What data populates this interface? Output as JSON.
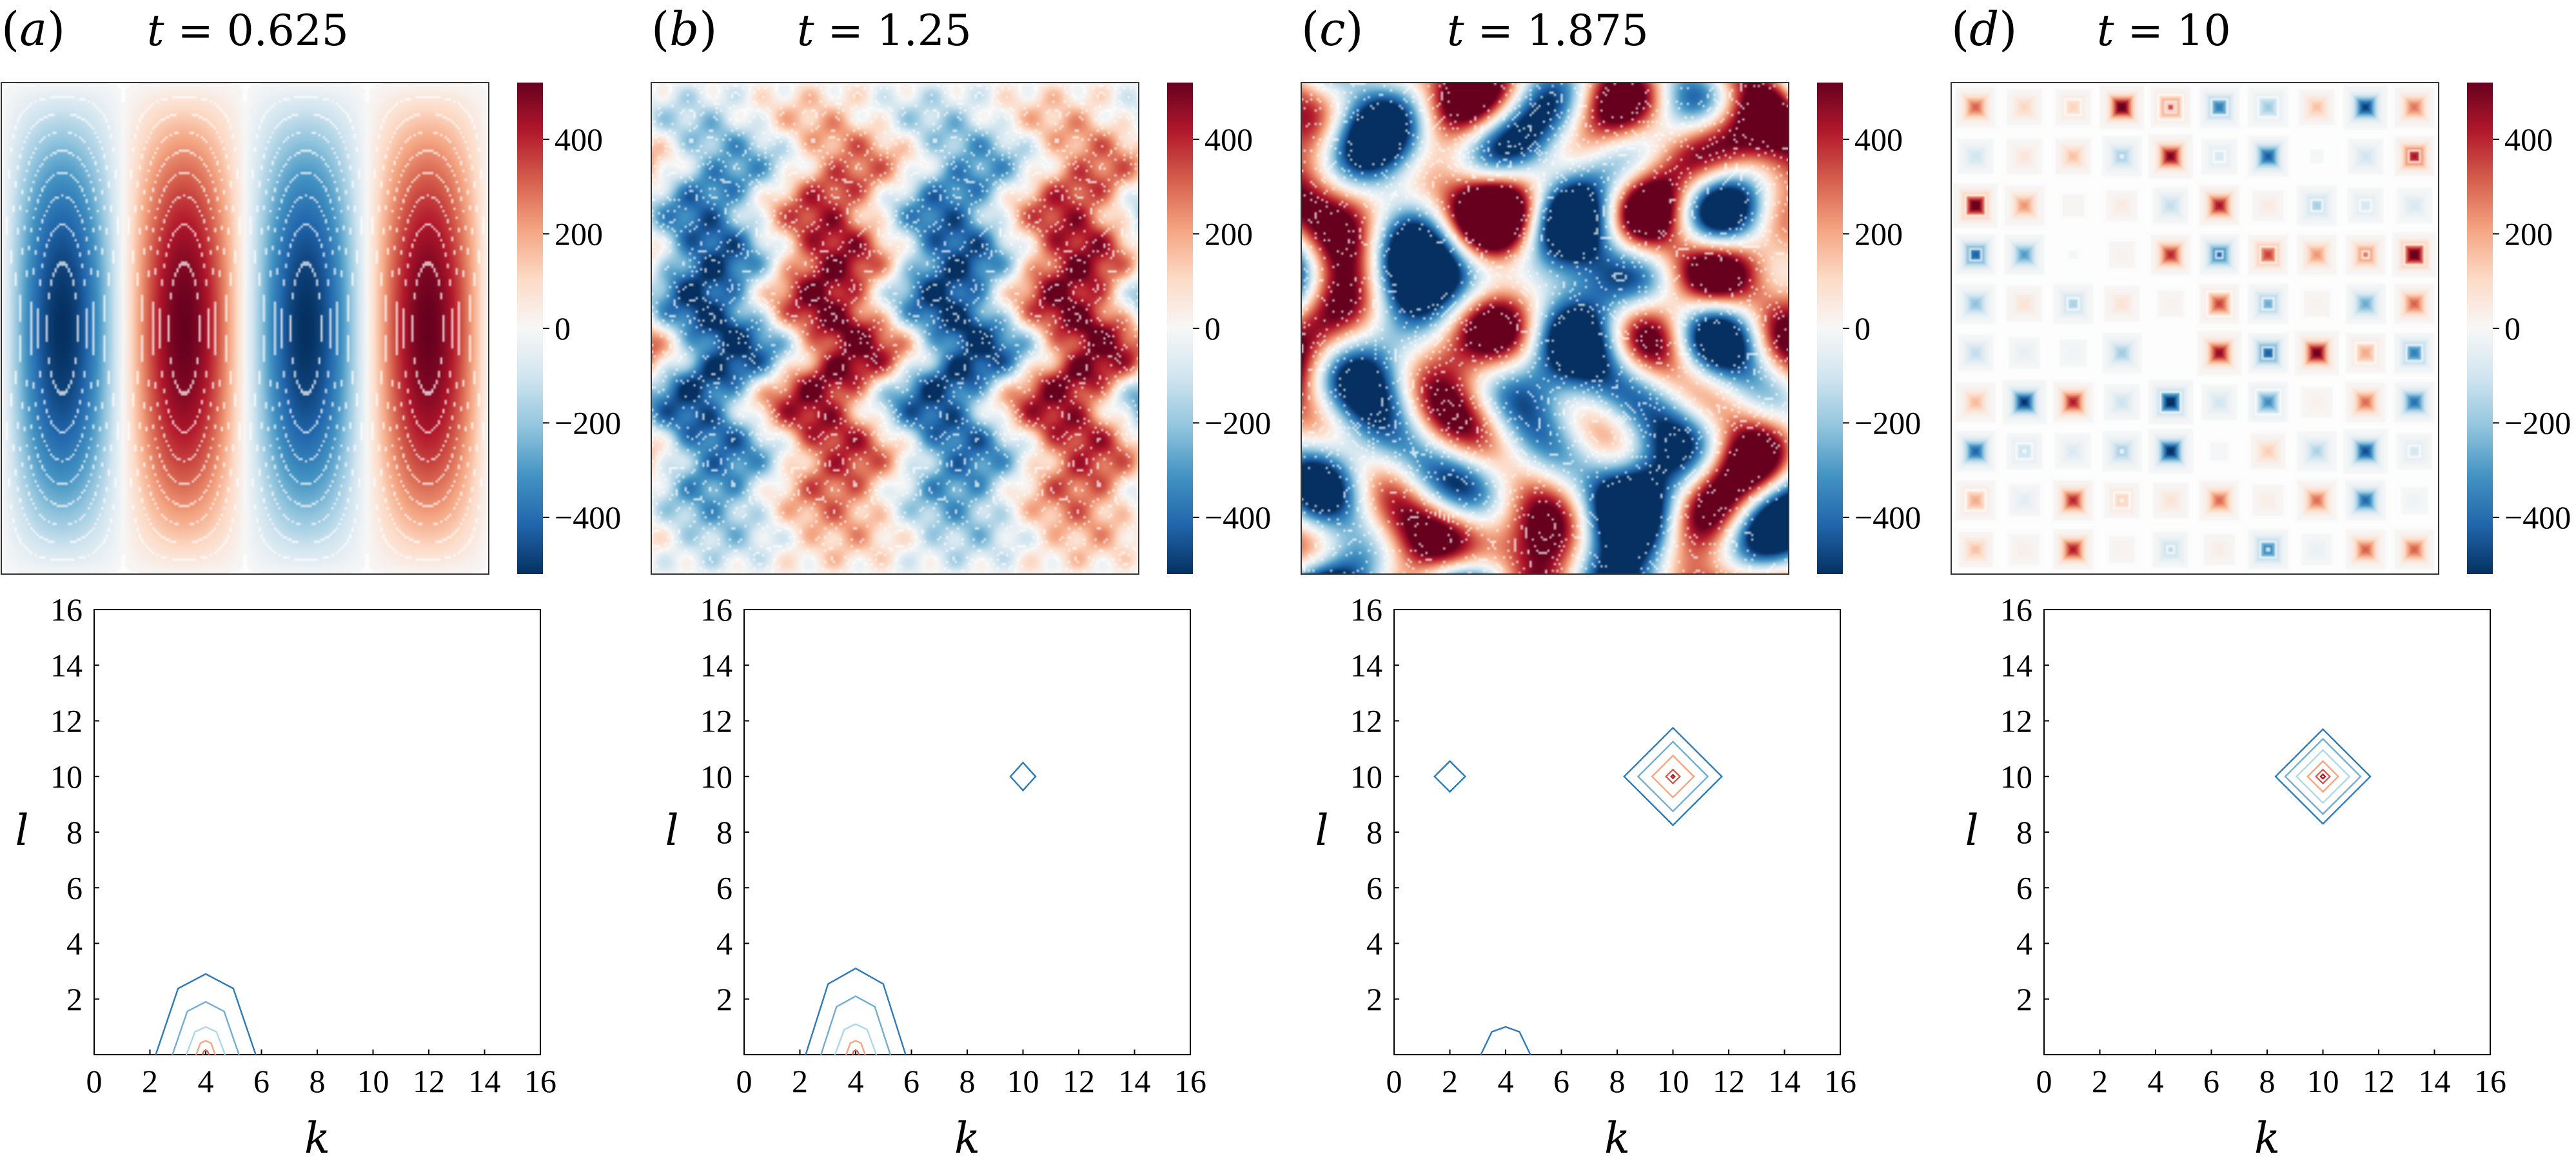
{
  "panels": [
    {
      "letter": "a",
      "label_open": "(",
      "label_letter": "a",
      "label_close": ")",
      "time_label": "t = 0.625",
      "t_symbol": "t",
      "t_eq": "= 0.625"
    },
    {
      "letter": "b",
      "label_open": "(",
      "label_letter": "b",
      "label_close": ")",
      "time_label": "t = 1.25",
      "t_symbol": "t",
      "t_eq": "= 1.25"
    },
    {
      "letter": "c",
      "label_open": "(",
      "label_letter": "c",
      "label_close": ")",
      "time_label": "t = 1.875",
      "t_symbol": "t",
      "t_eq": "= 1.875"
    },
    {
      "letter": "d",
      "label_open": "(",
      "label_letter": "d",
      "label_close": ")",
      "time_label": "t = 10",
      "t_symbol": "t",
      "t_eq": "= 10"
    }
  ],
  "colorbar": {
    "ticks": [
      "400",
      "200",
      "0",
      "−200",
      "−400"
    ],
    "tick_values": [
      400,
      200,
      0,
      -200,
      -400
    ],
    "range": [
      -520,
      520
    ],
    "colors": [
      "#053061",
      "#2166ac",
      "#4393c3",
      "#92c5de",
      "#d1e5f0",
      "#f7f7f7",
      "#fddbc7",
      "#f4a582",
      "#d6604d",
      "#b2182b",
      "#67001f"
    ]
  },
  "chart_data": [
    {
      "type": "heatmap",
      "panel": "a",
      "description_values": "vorticity field, four vertical bands",
      "field": {
        "kind": "bands",
        "kx": 4,
        "ly": 0.5,
        "amp": 520,
        "pattern": "-+-+"
      },
      "colorbar_ticks": [
        400,
        200,
        0,
        -200,
        -400
      ]
    },
    {
      "type": "heatmap",
      "panel": "b",
      "field": {
        "kind": "bands_perturbed",
        "kx": 4,
        "amp": 520
      },
      "colorbar_ticks": [
        400,
        200,
        0,
        -200,
        -400
      ]
    },
    {
      "type": "heatmap",
      "panel": "c",
      "field": {
        "kind": "turbulent",
        "amp": 560
      },
      "colorbar_ticks": [
        400,
        200,
        0,
        -200,
        -400
      ]
    },
    {
      "type": "heatmap",
      "panel": "d",
      "field": {
        "kind": "cellular",
        "k": 10,
        "l": 10,
        "amp": 560
      },
      "colorbar_ticks": [
        400,
        200,
        0,
        -200,
        -400
      ]
    },
    {
      "type": "line",
      "panel": "a-spectrum",
      "xlabel": "k",
      "ylabel": "l",
      "xlim": [
        0,
        16
      ],
      "ylim": [
        0,
        16
      ],
      "xticks": [
        0,
        2,
        4,
        6,
        8,
        10,
        12,
        14,
        16
      ],
      "yticks": [
        2,
        4,
        6,
        8,
        10,
        12,
        14,
        16
      ],
      "contours": [
        {
          "center": [
            4,
            0
          ],
          "half_width": 1.8,
          "half_height": 2.9,
          "color": "#2c7bb6",
          "clipped": true
        },
        {
          "center": [
            4,
            0
          ],
          "half_width": 1.2,
          "half_height": 1.9,
          "color": "#74add1",
          "clipped": true
        },
        {
          "center": [
            4,
            0
          ],
          "half_width": 0.7,
          "half_height": 1.0,
          "color": "#abd9e9",
          "clipped": true
        },
        {
          "center": [
            4,
            0
          ],
          "half_width": 0.35,
          "half_height": 0.5,
          "color": "#f4a582",
          "clipped": true
        },
        {
          "center": [
            4,
            0
          ],
          "half_width": 0.12,
          "half_height": 0.15,
          "color": "#d6604d",
          "clipped": true
        }
      ]
    },
    {
      "type": "line",
      "panel": "b-spectrum",
      "xlabel": "k",
      "ylabel": "l",
      "xlim": [
        0,
        16
      ],
      "ylim": [
        0,
        16
      ],
      "xticks": [
        0,
        2,
        4,
        6,
        8,
        10,
        12,
        14,
        16
      ],
      "yticks": [
        2,
        4,
        6,
        8,
        10,
        12,
        14,
        16
      ],
      "contours": [
        {
          "center": [
            4,
            0
          ],
          "half_width": 1.8,
          "half_height": 3.1,
          "color": "#2c7bb6",
          "clipped": true
        },
        {
          "center": [
            4,
            0
          ],
          "half_width": 1.25,
          "half_height": 2.1,
          "color": "#74add1",
          "clipped": true
        },
        {
          "center": [
            4,
            0
          ],
          "half_width": 0.75,
          "half_height": 1.1,
          "color": "#abd9e9",
          "clipped": true
        },
        {
          "center": [
            4,
            0
          ],
          "half_width": 0.35,
          "half_height": 0.5,
          "color": "#f4a582",
          "clipped": true
        },
        {
          "center": [
            4,
            0
          ],
          "half_width": 0.12,
          "half_height": 0.15,
          "color": "#d6604d",
          "clipped": true
        },
        {
          "center": [
            10,
            10
          ],
          "half_width": 0.45,
          "half_height": 0.5,
          "color": "#2c7bb6",
          "clipped": false
        }
      ]
    },
    {
      "type": "line",
      "panel": "c-spectrum",
      "xlabel": "k",
      "ylabel": "l",
      "xlim": [
        0,
        16
      ],
      "ylim": [
        0,
        16
      ],
      "xticks": [
        0,
        2,
        4,
        6,
        8,
        10,
        12,
        14,
        16
      ],
      "yticks": [
        2,
        4,
        6,
        8,
        10,
        12,
        14,
        16
      ],
      "contours": [
        {
          "center": [
            2,
            10
          ],
          "half_width": 0.55,
          "half_height": 0.55,
          "color": "#2c7bb6",
          "clipped": false
        },
        {
          "center": [
            4,
            0
          ],
          "half_width": 0.9,
          "half_height": 1.0,
          "color": "#2c7bb6",
          "clipped": true
        },
        {
          "center": [
            10,
            10
          ],
          "half_width": 1.75,
          "half_height": 1.75,
          "color": "#2c7bb6",
          "clipped": false
        },
        {
          "center": [
            10,
            10
          ],
          "half_width": 1.25,
          "half_height": 1.25,
          "color": "#74add1",
          "clipped": false
        },
        {
          "center": [
            10,
            10
          ],
          "half_width": 0.75,
          "half_height": 0.75,
          "color": "#f4a582",
          "clipped": false
        },
        {
          "center": [
            10,
            10
          ],
          "half_width": 0.25,
          "half_height": 0.25,
          "color": "#d6604d",
          "clipped": false
        },
        {
          "center": [
            10,
            10
          ],
          "half_width": 0.06,
          "half_height": 0.06,
          "color": "#b2182b",
          "clipped": false
        }
      ]
    },
    {
      "type": "line",
      "panel": "d-spectrum",
      "xlabel": "k",
      "ylabel": "l",
      "xlim": [
        0,
        16
      ],
      "ylim": [
        0,
        16
      ],
      "xticks": [
        0,
        2,
        4,
        6,
        8,
        10,
        12,
        14,
        16
      ],
      "yticks": [
        2,
        4,
        6,
        8,
        10,
        12,
        14,
        16
      ],
      "contours": [
        {
          "center": [
            10,
            10
          ],
          "half_width": 1.7,
          "half_height": 1.7,
          "color": "#2c7bb6",
          "clipped": false
        },
        {
          "center": [
            10,
            10
          ],
          "half_width": 1.35,
          "half_height": 1.35,
          "color": "#74add1",
          "clipped": false
        },
        {
          "center": [
            10,
            10
          ],
          "half_width": 0.95,
          "half_height": 0.95,
          "color": "#abd9e9",
          "clipped": false
        },
        {
          "center": [
            10,
            10
          ],
          "half_width": 0.55,
          "half_height": 0.55,
          "color": "#f4a582",
          "clipped": false
        },
        {
          "center": [
            10,
            10
          ],
          "half_width": 0.25,
          "half_height": 0.25,
          "color": "#d6604d",
          "clipped": false
        },
        {
          "center": [
            10,
            10
          ],
          "half_width": 0.08,
          "half_height": 0.08,
          "color": "#b2182b",
          "clipped": false
        }
      ]
    }
  ]
}
